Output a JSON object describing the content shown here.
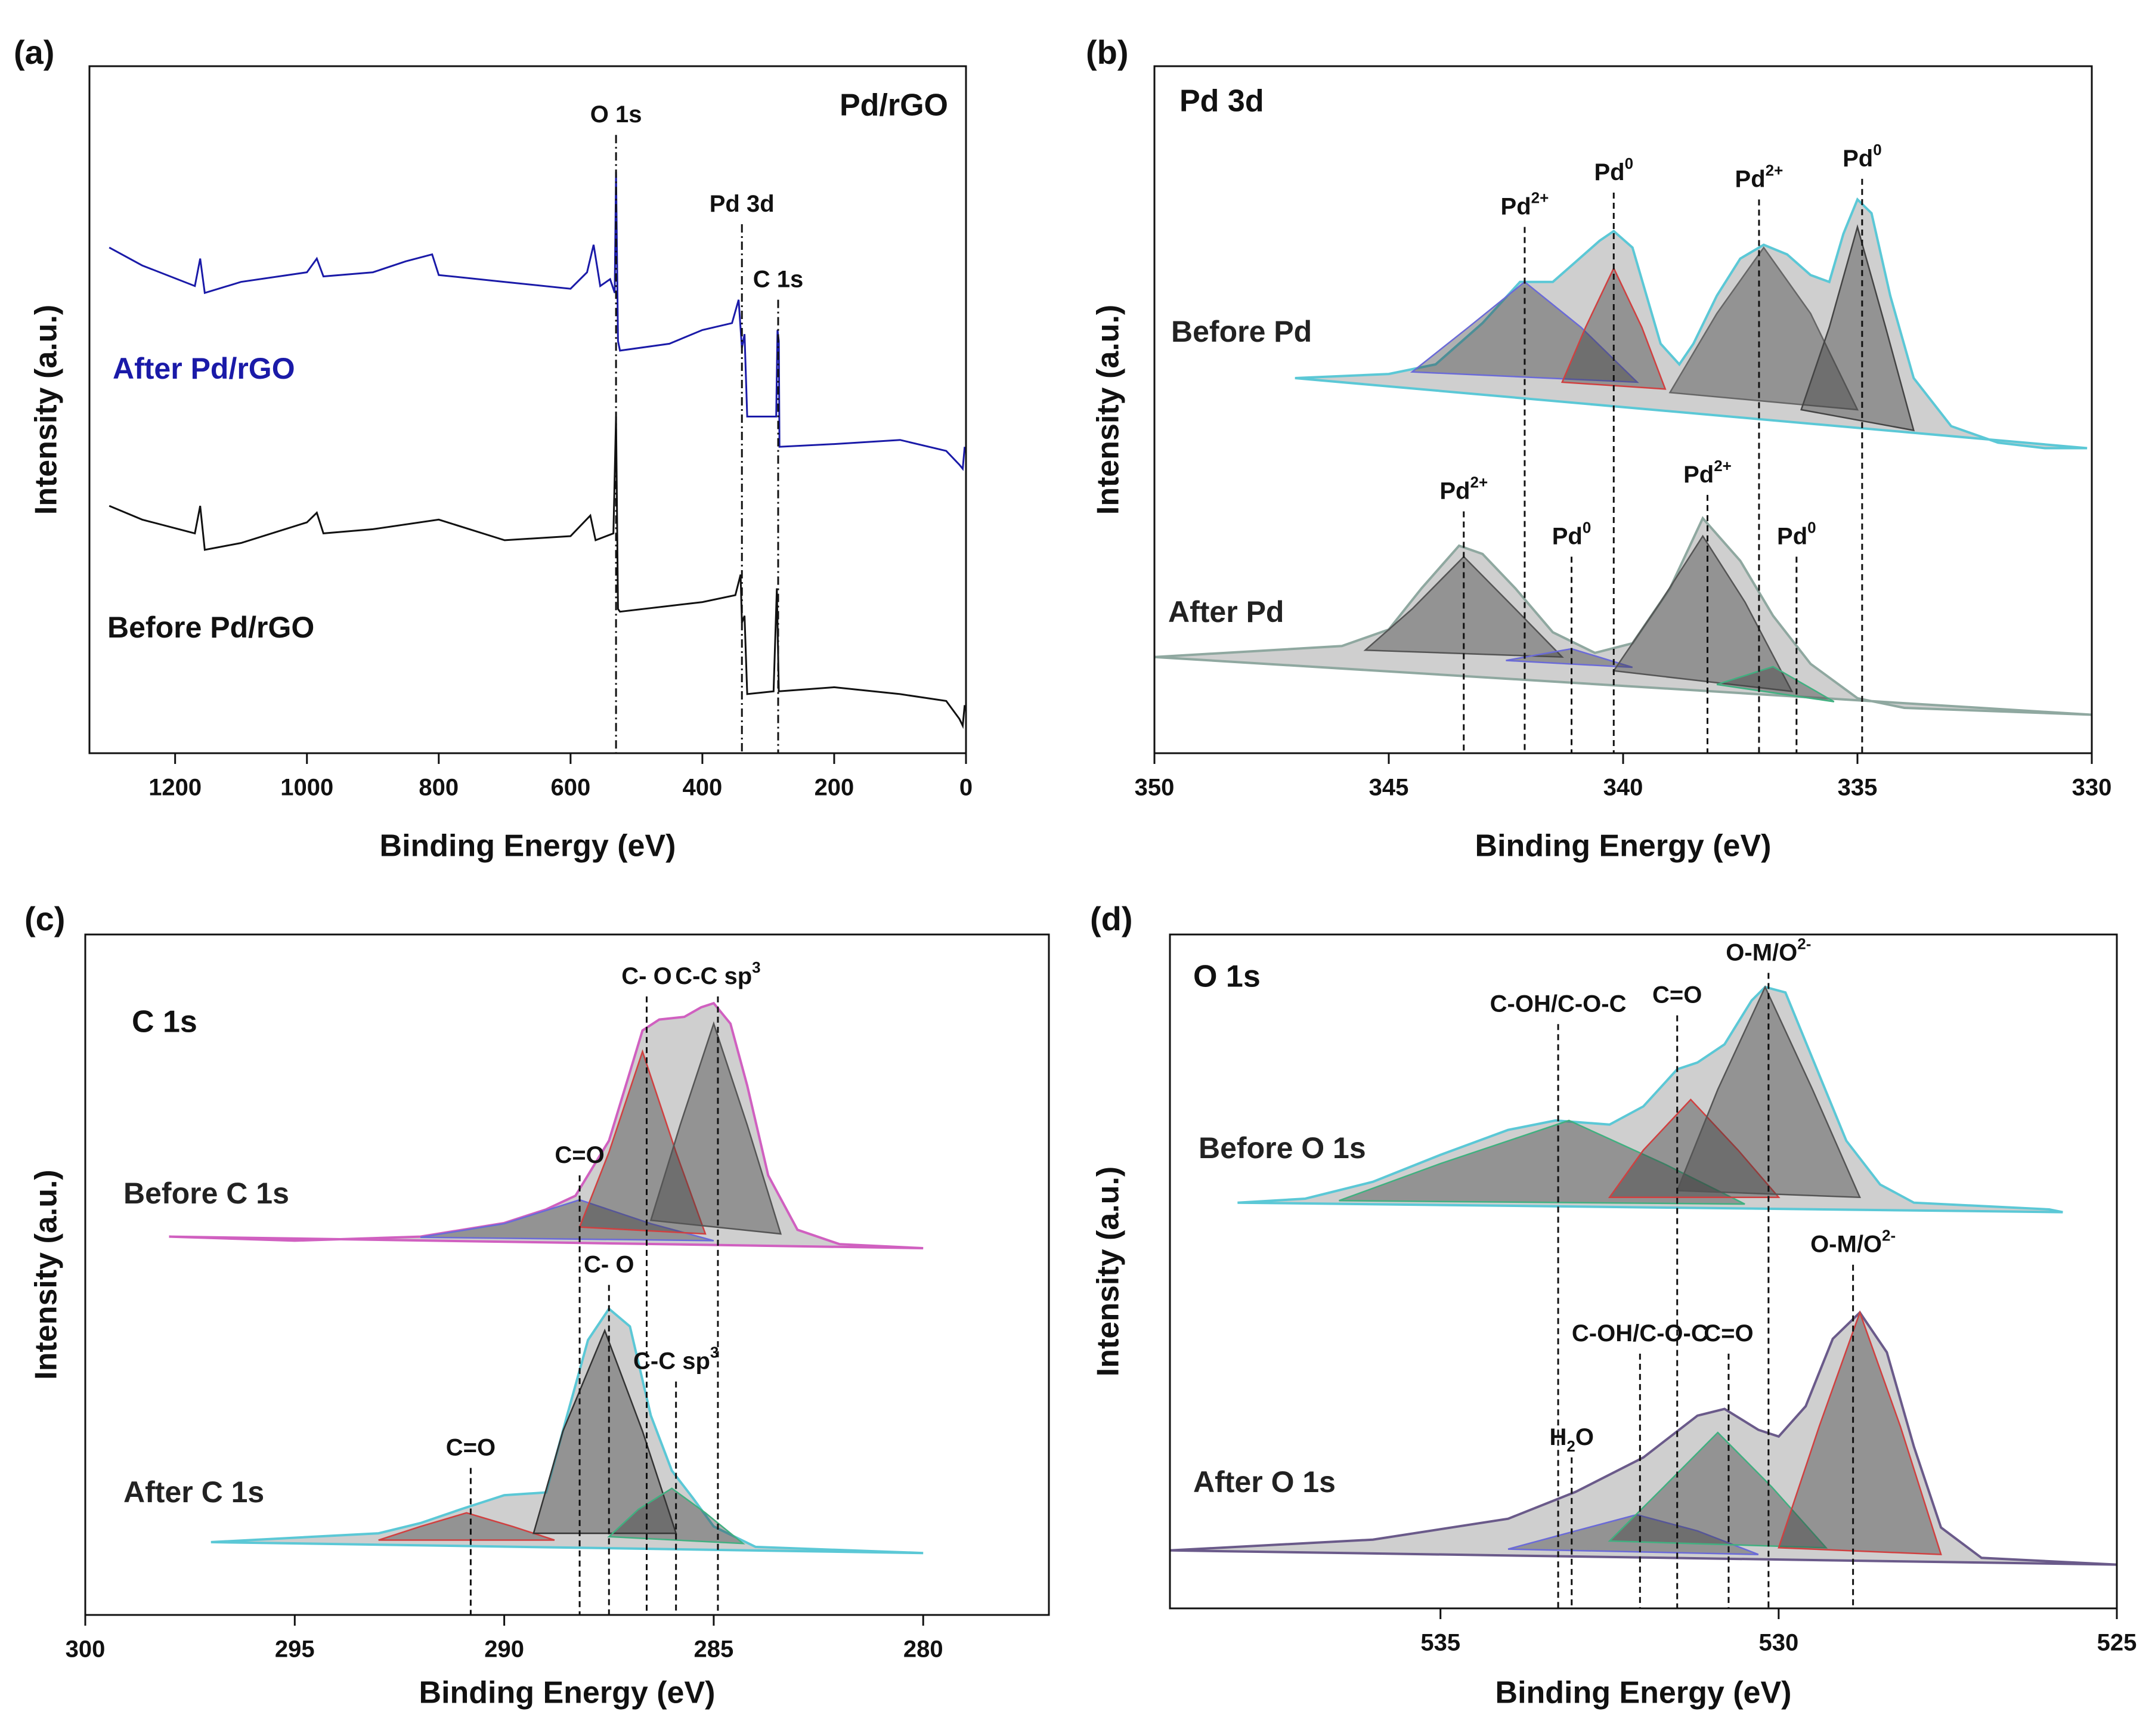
{
  "chart_data": [
    {
      "type": "line",
      "panel": "(a)",
      "title": "Pd/rGO",
      "xlabel": "Binding Energy (eV)",
      "ylabel": "Intensity (a.u.)",
      "xlim": [
        1330,
        0
      ],
      "xticks": [
        1200,
        1000,
        800,
        600,
        400,
        200,
        0
      ],
      "ylim": [
        0,
        100
      ],
      "annotation_line": "dashdot",
      "series": [
        {
          "name": "After Pd/rGO",
          "color": "#1a1aa8",
          "x": [
            1300,
            1250,
            1170,
            1162,
            1155,
            1100,
            1000,
            985,
            975,
            900,
            850,
            810,
            800,
            700,
            600,
            575,
            565,
            555,
            540,
            533,
            531,
            528,
            525,
            450,
            400,
            355,
            345,
            340,
            336,
            332,
            300,
            288,
            286,
            284,
            283,
            200,
            100,
            30,
            10,
            5,
            2
          ],
          "values": [
            73.6,
            71,
            68,
            72,
            67,
            68.6,
            70,
            72,
            69.4,
            70,
            71.6,
            72.6,
            69.6,
            68.6,
            67.6,
            70,
            74,
            68,
            69,
            67,
            84.6,
            60,
            58.6,
            59.6,
            61.6,
            62.6,
            66,
            59,
            61,
            49,
            49,
            49,
            61.6,
            60,
            44.6,
            45,
            45.6,
            44,
            42,
            41.4,
            44.6
          ]
        },
        {
          "name": "Before Pd/rGO",
          "color": "#111111",
          "x": [
            1300,
            1250,
            1170,
            1162,
            1155,
            1100,
            1000,
            985,
            975,
            900,
            800,
            700,
            600,
            570,
            562,
            535,
            531,
            528,
            525,
            400,
            350,
            342,
            340,
            336,
            332,
            292,
            287,
            284,
            200,
            100,
            30,
            10,
            5,
            2
          ],
          "values": [
            36,
            34,
            32,
            36,
            29.6,
            30.6,
            33.6,
            35,
            32,
            32.6,
            34,
            31,
            31.6,
            34.6,
            31,
            32,
            49,
            21,
            20.6,
            22,
            23,
            26,
            19,
            20,
            8.6,
            9,
            24,
            9,
            9.6,
            8.6,
            7.6,
            5,
            4,
            7
          ]
        }
      ],
      "annotations": [
        {
          "text": "O 1s",
          "x": 531,
          "y": 90
        },
        {
          "text": "Pd 3d",
          "x": 340,
          "y": 77
        },
        {
          "text": "C 1s",
          "x": 285,
          "y": 66
        }
      ]
    },
    {
      "type": "area",
      "panel": "(b)",
      "title": "Pd 3d",
      "xlabel": "Binding Energy (eV)",
      "ylabel": "Intensity (a.u.)",
      "xlim": [
        350,
        330
      ],
      "xticks": [
        350,
        345,
        340,
        335,
        330
      ],
      "ylim": [
        0,
        100
      ],
      "annotation_line": "dashed",
      "series": [
        {
          "name": "Before Pd",
          "color": "#5bc8d6",
          "x": [
            347,
            345,
            344,
            343,
            342.2,
            341.5,
            341,
            340.5,
            340.2,
            339.8,
            339.2,
            338.8,
            338.5,
            338,
            337.5,
            337,
            336.5,
            336,
            335.6,
            335.3,
            335,
            334.7,
            334.3,
            333.8,
            333,
            332,
            331,
            330.1
          ],
          "values": [
            54.6,
            55.2,
            56.6,
            62.6,
            68.6,
            68.6,
            71.6,
            74.6,
            76,
            73.6,
            59.6,
            56.6,
            59.6,
            66.6,
            72,
            74,
            72.6,
            69.6,
            68.6,
            75.6,
            80.6,
            78.6,
            66.6,
            54.6,
            47.6,
            45.2,
            44.4,
            44.4
          ],
          "components": [
            {
              "color": "#6a6ad8",
              "x": [
                344.5,
                343.3,
                342.1,
                340.9,
                339.7
              ],
              "values": [
                55.5,
                62,
                68.6,
                62,
                54
              ]
            },
            {
              "color": "#d04040",
              "x": [
                341.3,
                340.8,
                340.2,
                339.6,
                339.1
              ],
              "values": [
                54,
                62,
                70.6,
                62,
                53
              ]
            },
            {
              "color": "#666666",
              "x": [
                339,
                338,
                337,
                336,
                335
              ],
              "values": [
                52.5,
                64,
                73.6,
                64,
                50
              ]
            },
            {
              "color": "#444444",
              "x": [
                336.2,
                335.6,
                335,
                334.4,
                333.8
              ],
              "values": [
                50,
                62,
                76.6,
                62,
                47
              ]
            }
          ]
        },
        {
          "name": "After Pd",
          "color": "#8fa8a0",
          "x": [
            350,
            346,
            345,
            344.3,
            343.5,
            343,
            342.3,
            341.5,
            340.6,
            339.8,
            339,
            338.3,
            337.5,
            336.8,
            336,
            335,
            334,
            330
          ],
          "values": [
            14,
            15.6,
            18,
            24,
            30.2,
            29,
            24,
            17.6,
            14.6,
            16,
            24,
            34.2,
            28,
            20,
            13,
            8,
            6.6,
            5.6
          ],
          "components": [
            {
              "color": "#555555",
              "x": [
                345.5,
                344.5,
                343.4,
                342.3,
                341.3
              ],
              "values": [
                15,
                21,
                28.6,
                21,
                14
              ]
            },
            {
              "color": "#6a6ad8",
              "x": [
                342.5,
                341.1,
                339.8
              ],
              "values": [
                13.5,
                15.2,
                12.5
              ]
            },
            {
              "color": "#555555",
              "x": [
                340.2,
                339.2,
                338.3,
                337.4,
                336.4
              ],
              "values": [
                12,
                22,
                31.6,
                22,
                9
              ]
            },
            {
              "color": "#40b080",
              "x": [
                338,
                336.8,
                335.5
              ],
              "values": [
                10,
                12.6,
                7.5
              ]
            }
          ]
        }
      ],
      "annotations": [
        {
          "text": "Pd",
          "sup": "2+",
          "x": 342.1,
          "y": 76.6
        },
        {
          "text": "Pd",
          "sup": "0",
          "x": 340.2,
          "y": 81.6
        },
        {
          "text": "Pd",
          "sup": "2+",
          "x": 337.1,
          "y": 80.6
        },
        {
          "text": "Pd",
          "sup": "0",
          "x": 334.9,
          "y": 83.6
        },
        {
          "text": "Pd",
          "sup": "2+",
          "x": 343.4,
          "y": 35.2
        },
        {
          "text": "Pd",
          "sup": "0",
          "x": 341.1,
          "y": 28.6
        },
        {
          "text": "Pd",
          "sup": "2+",
          "x": 338.2,
          "y": 37.6
        },
        {
          "text": "Pd",
          "sup": "0",
          "x": 336.3,
          "y": 28.6
        }
      ]
    },
    {
      "type": "area",
      "panel": "(c)",
      "title": "C 1s",
      "xlabel": "Binding Energy (eV)",
      "ylabel": "Intensity (a.u.)",
      "xlim": [
        300,
        277
      ],
      "xticks": [
        300,
        295,
        290,
        285,
        280
      ],
      "ylim": [
        0,
        100
      ],
      "annotation_line": "dashed",
      "series": [
        {
          "name": "Before C 1s",
          "color": "#d060c0",
          "x": [
            298,
            295,
            292,
            290,
            289,
            288.3,
            287.5,
            287,
            286.7,
            286.3,
            285.7,
            285.3,
            285,
            284.6,
            284.2,
            283.7,
            283,
            282,
            280
          ],
          "values": [
            55.6,
            55,
            55.6,
            57.6,
            59.6,
            61.6,
            69.7,
            79.8,
            85.9,
            87.5,
            87.9,
            89.3,
            89.9,
            86.9,
            77.8,
            64.6,
            56.6,
            54.5,
            53.9
          ],
          "components": [
            {
              "color": "#6a6ad8",
              "x": [
                292,
                290,
                288.2,
                286.5,
                285
              ],
              "values": [
                55.5,
                57.5,
                61,
                57.5,
                55
              ]
            },
            {
              "color": "#d04040",
              "x": [
                288.2,
                287.5,
                286.7,
                285.9,
                285.2
              ],
              "values": [
                57,
                68,
                82.8,
                68,
                56
              ]
            },
            {
              "color": "#555555",
              "x": [
                286.5,
                285.8,
                285,
                284.2,
                283.4
              ],
              "values": [
                58,
                72,
                86.9,
                72,
                56
              ]
            }
          ]
        },
        {
          "name": "After C 1s",
          "color": "#5bc8d6",
          "x": [
            297,
            293,
            292,
            291,
            290,
            289,
            288.5,
            288,
            287.5,
            287,
            286.5,
            286,
            285.5,
            285,
            284,
            280
          ],
          "values": [
            10.7,
            12,
            13.5,
            15.6,
            17.6,
            18,
            29.3,
            40.4,
            45,
            42.4,
            29.3,
            21.2,
            17.2,
            13,
            10,
            9.1
          ],
          "components": [
            {
              "color": "#d04040",
              "x": [
                293,
                292,
                290.9,
                289.8,
                288.8
              ],
              "values": [
                11,
                13,
                15,
                13,
                11
              ]
            },
            {
              "color": "#333333",
              "x": [
                289.3,
                288.6,
                287.6,
                286.7,
                285.9
              ],
              "values": [
                12,
                27,
                41.8,
                27,
                12
              ]
            },
            {
              "color": "#40b080",
              "x": [
                287.5,
                286.8,
                286,
                285.2,
                284.3
              ],
              "values": [
                11.5,
                15.5,
                18.6,
                15,
                10.5
              ]
            }
          ]
        }
      ],
      "annotations": [
        {
          "text": "C- O",
          "x": 286.6,
          "y": 90.9
        },
        {
          "text": "C-C sp",
          "sup": "3",
          "x": 284.9,
          "y": 90.9
        },
        {
          "text": "C=O",
          "x": 288.2,
          "y": 64.6
        },
        {
          "text": "C- O",
          "x": 287.5,
          "y": 48.5
        },
        {
          "text": "C-C sp",
          "sup": "3",
          "x": 285.9,
          "y": 34.3
        },
        {
          "text": "C=O",
          "x": 290.8,
          "y": 21.6
        }
      ]
    },
    {
      "type": "area",
      "panel": "(d)",
      "title": "O 1s",
      "xlabel": "Binding Energy (eV)",
      "ylabel": "Intensity (a.u.)",
      "xlim": [
        539,
        525
      ],
      "xticks": [
        535,
        530,
        525
      ],
      "ylim": [
        0,
        100
      ],
      "annotation_line": "dashed",
      "series": [
        {
          "name": "Before O 1s",
          "color": "#5bc8d6",
          "x": [
            538,
            537,
            536,
            535,
            534,
            533.3,
            532.5,
            532,
            531.5,
            531.2,
            530.8,
            530.4,
            530.2,
            529.9,
            529.5,
            529,
            528.5,
            528,
            526,
            525.8
          ],
          "values": [
            60.2,
            60.8,
            63.3,
            67.3,
            71,
            72.4,
            71.8,
            74.5,
            80,
            81,
            83.7,
            90.2,
            92.2,
            91.4,
            81.6,
            69.4,
            62.9,
            60.2,
            59.2,
            58.8
          ],
          "components": [
            {
              "color": "#40b080",
              "x": [
                536.5,
                535,
                533.1,
                531.7,
                530.5
              ],
              "values": [
                60.5,
                66,
                72.4,
                66,
                60
              ]
            },
            {
              "color": "#d04040",
              "x": [
                532.5,
                532,
                531.3,
                530.6,
                530
              ],
              "values": [
                61,
                68,
                75.5,
                68,
                61
              ]
            },
            {
              "color": "#555555",
              "x": [
                531.5,
                530.9,
                530.2,
                529.5,
                528.8
              ],
              "values": [
                62,
                77,
                92.2,
                77,
                61
              ]
            }
          ]
        },
        {
          "name": "After O 1s",
          "color": "#6a5a8a",
          "x": [
            539,
            536,
            534,
            533,
            532,
            531.2,
            530.8,
            530.3,
            530,
            529.6,
            529.2,
            528.8,
            528.4,
            528,
            527.6,
            527,
            525
          ],
          "values": [
            8.6,
            10.2,
            13.3,
            17.3,
            22.4,
            28.6,
            29.6,
            26.5,
            25.5,
            30,
            40,
            43.9,
            38,
            24,
            12,
            7.5,
            6.5
          ],
          "components": [
            {
              "color": "#6a6ad8",
              "x": [
                534,
                533,
                532.1,
                531.2,
                530.3
              ],
              "values": [
                8.8,
                11.5,
                13.9,
                11.5,
                8
              ]
            },
            {
              "color": "#40b080",
              "x": [
                532.5,
                531.7,
                530.9,
                530.1,
                529.3
              ],
              "values": [
                10,
                18,
                26.1,
                18,
                9
              ]
            },
            {
              "color": "#d04040",
              "x": [
                530,
                529.4,
                528.8,
                528.2,
                527.6
              ],
              "values": [
                9,
                27,
                43.9,
                27,
                8
              ]
            }
          ]
        }
      ],
      "annotations": [
        {
          "text": "C-OH/C-O-C",
          "x": 533.26,
          "y": 86.7
        },
        {
          "text": "C=O",
          "x": 531.5,
          "y": 88
        },
        {
          "text": "O-M/O",
          "sup": "2-",
          "x": 530.15,
          "y": 94.3
        },
        {
          "text": "H",
          "sub": "2",
          "tail": "O",
          "x": 533.06,
          "y": 22.4
        },
        {
          "text": "C-OH/C-O-C",
          "x": 532.05,
          "y": 37.8
        },
        {
          "text": "C=O",
          "x": 530.74,
          "y": 37.8
        },
        {
          "text": "O-M/O",
          "sup": "2-",
          "x": 528.9,
          "y": 51
        }
      ]
    }
  ]
}
